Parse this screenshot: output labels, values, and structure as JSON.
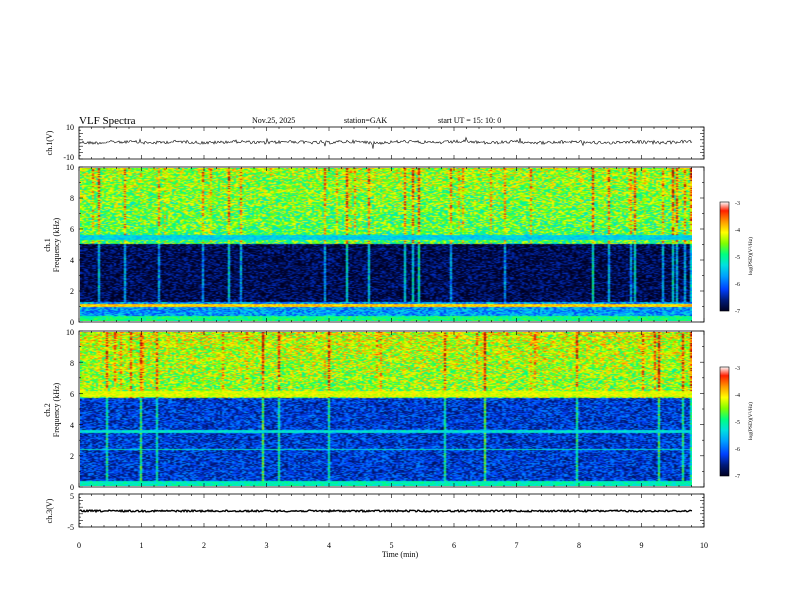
{
  "header": {
    "title": "VLF Spectra",
    "date": "Nov.25, 2025",
    "station": "station=GAK",
    "start": "start  UT =   15: 10: 0"
  },
  "colors": {
    "cmap": [
      "#000022",
      "#001a7a",
      "#0040ff",
      "#00a0ff",
      "#00e0e0",
      "#00ff80",
      "#80ff00",
      "#ffff00",
      "#ff9900",
      "#ff2000",
      "#a00000"
    ]
  },
  "chart_data": [
    {
      "type": "line",
      "id": "ch1-waveform",
      "ylabel": "ch.1(V)",
      "ylim": [
        -10,
        10
      ],
      "yticks": [
        "10",
        "-10"
      ],
      "xlim": [
        0,
        10
      ],
      "baseline": 0.5,
      "amplitude": 0.8
    },
    {
      "type": "heatmap",
      "id": "ch1-spectrogram",
      "ylabel_line1": "ch.1",
      "ylabel_line2": "Frequency (kHz)",
      "ylim": [
        0,
        10
      ],
      "yticks": [
        "0",
        "2",
        "4",
        "6",
        "8",
        "10"
      ],
      "xlim": [
        0,
        9.83
      ],
      "colorbar": {
        "label": "log(PSD)(V²/Hz)",
        "range": [
          -7,
          -3
        ],
        "ticks": [
          "-3",
          "-4",
          "-5",
          "-6",
          "-7"
        ]
      },
      "bands_khz": [
        {
          "from": 0.0,
          "to": 0.3,
          "level": -5.0
        },
        {
          "from": 0.9,
          "to": 1.1,
          "level": -4.0
        },
        {
          "from": 5.3,
          "to": 5.6,
          "level": -5.5
        }
      ],
      "noise_floor_low_khz": [
        1.2,
        5.0
      ],
      "noise_floor_level": -6.8,
      "upper_band_level": -4.8
    },
    {
      "type": "heatmap",
      "id": "ch2-spectrogram",
      "ylabel_line1": "ch.2",
      "ylabel_line2": "Frequency (kHz)",
      "ylim": [
        0,
        10
      ],
      "yticks": [
        "0",
        "2",
        "4",
        "6",
        "8",
        "10"
      ],
      "xlim": [
        0,
        9.83
      ],
      "colorbar": {
        "label": "log(PSD)(V²/Hz)",
        "range": [
          -7,
          -3
        ],
        "ticks": [
          "-3",
          "-4",
          "-5",
          "-6",
          "-7"
        ]
      },
      "bands_khz": [
        {
          "from": 0.0,
          "to": 0.3,
          "level": -5.2
        },
        {
          "from": 2.3,
          "to": 2.4,
          "level": -5.3
        },
        {
          "from": 3.4,
          "to": 3.6,
          "level": -5.4
        },
        {
          "from": 5.8,
          "to": 6.2,
          "level": -4.3
        }
      ],
      "noise_floor_low_khz": [
        0.3,
        5.7
      ],
      "noise_floor_level": -6.3,
      "upper_band_level": -4.6
    },
    {
      "type": "line",
      "id": "ch3-waveform",
      "ylabel": "ch.3(V)",
      "ylim": [
        -5,
        5
      ],
      "yticks": [
        "5",
        "-5"
      ],
      "xlim": [
        0,
        10
      ],
      "baseline": 0.0,
      "amplitude": 0.15
    }
  ],
  "xaxis": {
    "label": "Time  (min)",
    "ticks": [
      "0",
      "1",
      "2",
      "3",
      "4",
      "5",
      "6",
      "7",
      "8",
      "9",
      "10"
    ],
    "range": [
      0,
      10
    ]
  }
}
